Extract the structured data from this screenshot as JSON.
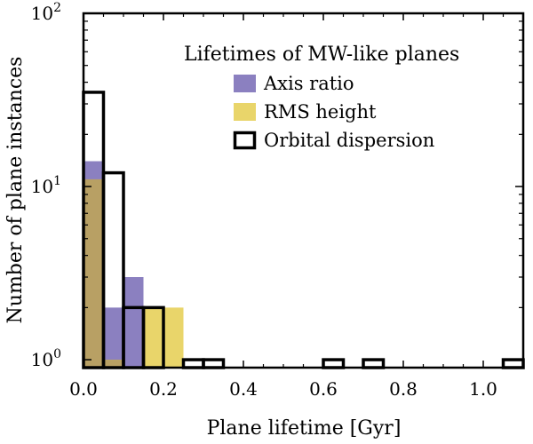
{
  "chart_data": {
    "type": "bar",
    "subtype": "histogram",
    "y_scale": "log",
    "xlabel": "Plane lifetime [Gyr]",
    "ylabel": "Number of plane instances",
    "xlim": [
      0.0,
      1.1
    ],
    "ylim": [
      0.9,
      100
    ],
    "x_ticks": [
      {
        "value": 0.0,
        "label": "0.0"
      },
      {
        "value": 0.2,
        "label": "0.2"
      },
      {
        "value": 0.4,
        "label": "0.4"
      },
      {
        "value": 0.6,
        "label": "0.6"
      },
      {
        "value": 0.8,
        "label": "0.8"
      },
      {
        "value": 1.0,
        "label": "1.0"
      }
    ],
    "y_ticks": [
      {
        "value": 1,
        "base": "10",
        "exp": "0"
      },
      {
        "value": 10,
        "base": "10",
        "exp": "1"
      },
      {
        "value": 100,
        "base": "10",
        "exp": "2"
      }
    ],
    "bin_width": 0.05,
    "legend": {
      "title": "Lifetimes of MW-like planes",
      "location": "upper-right"
    },
    "series": [
      {
        "name": "Axis ratio",
        "style": "filled",
        "color": "#8b80c0",
        "bin_starts": [
          0.0,
          0.05,
          0.1
        ],
        "values": [
          14,
          2,
          3
        ]
      },
      {
        "name": "RMS height",
        "style": "filled",
        "color": "#e9d56a",
        "bin_starts": [
          0.0,
          0.05,
          0.15,
          0.2
        ],
        "values": [
          11,
          1,
          2,
          2
        ]
      },
      {
        "name": "Orbital dispersion",
        "style": "step",
        "color": "#000000",
        "bin_starts": [
          0.0,
          0.05,
          0.1,
          0.15,
          0.25,
          0.3,
          0.6,
          0.7,
          1.05
        ],
        "values": [
          35,
          12,
          2,
          2,
          1,
          1,
          1,
          1,
          1
        ]
      }
    ],
    "overlap_color": "#b8a064"
  }
}
